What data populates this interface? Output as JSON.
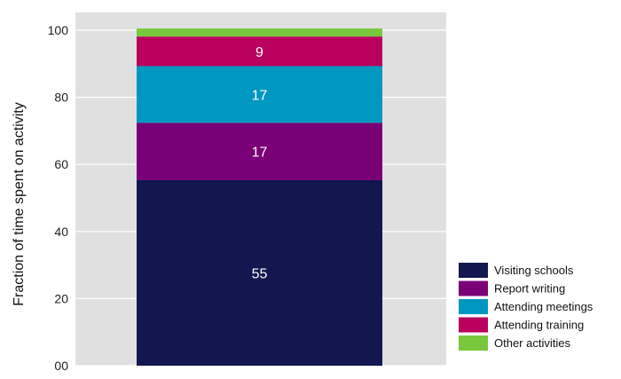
{
  "chart_data": {
    "type": "bar",
    "stacked": true,
    "categories": [
      ""
    ],
    "title": "",
    "xlabel": "",
    "ylabel": "Fraction of time spent on activity",
    "ylim": [
      0,
      100
    ],
    "yticks": [
      "00",
      "20",
      "40",
      "60",
      "80",
      "100"
    ],
    "grid": true,
    "legend_position": "bottom-right",
    "series": [
      {
        "name": "Visiting schools",
        "values": [
          55.3
        ],
        "label": "55",
        "color": "#13174f"
      },
      {
        "name": "Report writing",
        "values": [
          17.1
        ],
        "label": "17",
        "color": "#7a0078"
      },
      {
        "name": "Attending meetings",
        "values": [
          16.9
        ],
        "label": "17",
        "color": "#0098c0"
      },
      {
        "name": "Attending training",
        "values": [
          8.8
        ],
        "label": "9",
        "color": "#b8005c"
      },
      {
        "name": "Other activities",
        "values": [
          2.4
        ],
        "label": "",
        "color": "#77c83c"
      }
    ],
    "colors": {
      "panel_background": "#e0e0e0",
      "gridline": "#ffffff"
    }
  }
}
